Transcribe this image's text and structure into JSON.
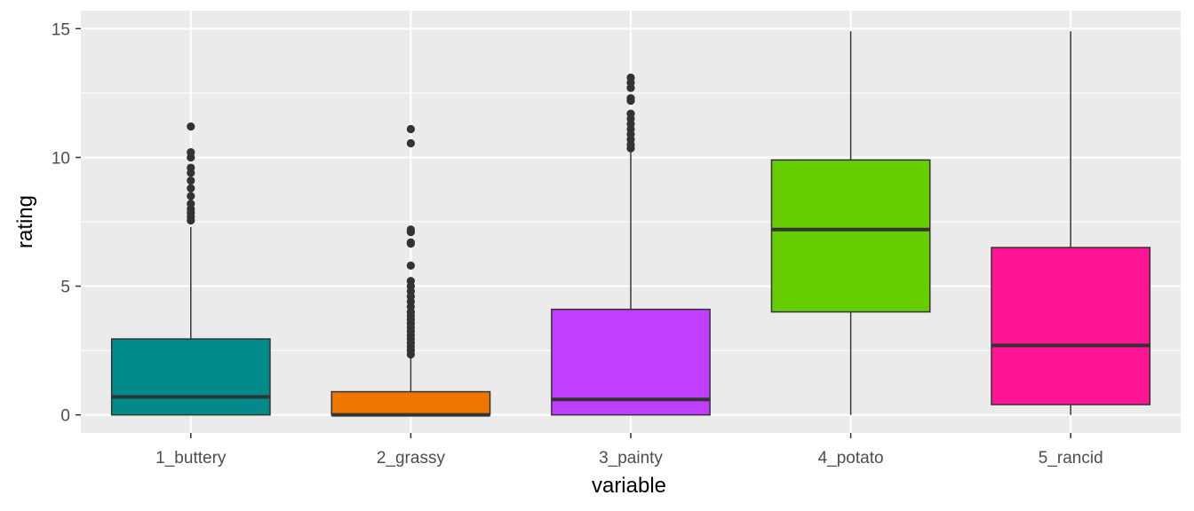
{
  "chart_data": {
    "type": "boxplot",
    "xlabel": "variable",
    "ylabel": "rating",
    "ylim": [
      -0.7,
      15.7
    ],
    "yticks": [
      0,
      5,
      10,
      15
    ],
    "grid": true,
    "legend": "none",
    "categories": [
      "1_buttery",
      "2_grassy",
      "3_painty",
      "4_potato",
      "5_rancid"
    ],
    "boxes": [
      {
        "category": "1_buttery",
        "color": "#008B8B",
        "whisker_low": 0,
        "q1": 0,
        "median": 0.7,
        "q3": 2.95,
        "whisker_high": 7.3,
        "outliers": [
          7.55,
          7.7,
          7.85,
          8.0,
          8.2,
          8.5,
          8.8,
          9.1,
          9.4,
          9.6,
          10.0,
          10.2,
          11.2
        ]
      },
      {
        "category": "2_grassy",
        "color": "#EE7600",
        "whisker_low": 0,
        "q1": 0,
        "median": 0,
        "q3": 0.9,
        "whisker_high": 2.2,
        "outliers": [
          2.35,
          2.5,
          2.65,
          2.8,
          2.95,
          3.1,
          3.25,
          3.4,
          3.55,
          3.7,
          3.85,
          4.0,
          4.2,
          4.4,
          4.6,
          4.8,
          5.0,
          5.2,
          5.8,
          6.65,
          6.7,
          7.1,
          7.2,
          10.55,
          11.1
        ]
      },
      {
        "category": "3_painty",
        "color": "#BF3EFF",
        "whisker_low": 0,
        "q1": 0,
        "median": 0.6,
        "q3": 4.1,
        "whisker_high": 10.2,
        "outliers": [
          10.35,
          10.5,
          10.7,
          10.9,
          11.1,
          11.3,
          11.5,
          11.7,
          12.2,
          12.3,
          12.7,
          12.9,
          13.1
        ]
      },
      {
        "category": "4_potato",
        "color": "#66CD00",
        "whisker_low": 0,
        "q1": 4.0,
        "median": 7.2,
        "q3": 9.9,
        "whisker_high": 14.9,
        "outliers": []
      },
      {
        "category": "5_rancid",
        "color": "#FF1493",
        "whisker_low": 0,
        "q1": 0.4,
        "median": 2.7,
        "q3": 6.5,
        "whisker_high": 14.9,
        "outliers": []
      }
    ]
  }
}
